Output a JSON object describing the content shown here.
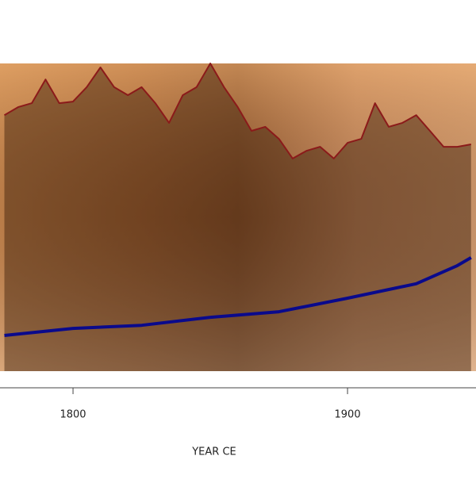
{
  "chart_data": {
    "type": "line",
    "x_label": "YEAR CE",
    "xlim": [
      1773.4,
      1946.8
    ],
    "xticks": [
      1800,
      1900
    ],
    "ylim": [
      0,
      100
    ],
    "series": [
      {
        "name": null,
        "color": "#8b1a1a",
        "fill": true,
        "x": [
          1775,
          1780,
          1785,
          1790,
          1795,
          1800,
          1805,
          1810,
          1815,
          1820,
          1825,
          1830,
          1835,
          1840,
          1845,
          1850,
          1855,
          1860,
          1865,
          1870,
          1875,
          1880,
          1885,
          1890,
          1895,
          1900,
          1905,
          1910,
          1915,
          1920,
          1925,
          1930,
          1935,
          1940,
          1945
        ],
        "values": [
          83.2,
          85.8,
          87.1,
          94.8,
          87.1,
          87.6,
          92.3,
          98.7,
          92.3,
          89.7,
          92.3,
          87.1,
          80.7,
          89.7,
          92.3,
          100,
          92.3,
          85.8,
          78.1,
          79.4,
          75.5,
          69.1,
          71.6,
          72.9,
          69.1,
          74.2,
          75.5,
          87.1,
          79.4,
          80.7,
          83.2,
          78.1,
          72.9,
          72.9,
          73.7
        ]
      },
      {
        "name": null,
        "color": "#0a0a8c",
        "fill": false,
        "x": [
          1775,
          1800,
          1825,
          1850,
          1875,
          1900,
          1925,
          1940,
          1945
        ],
        "values": [
          11.6,
          13.9,
          14.9,
          17.5,
          19.3,
          23.7,
          28.4,
          34.3,
          36.9
        ]
      }
    ]
  }
}
